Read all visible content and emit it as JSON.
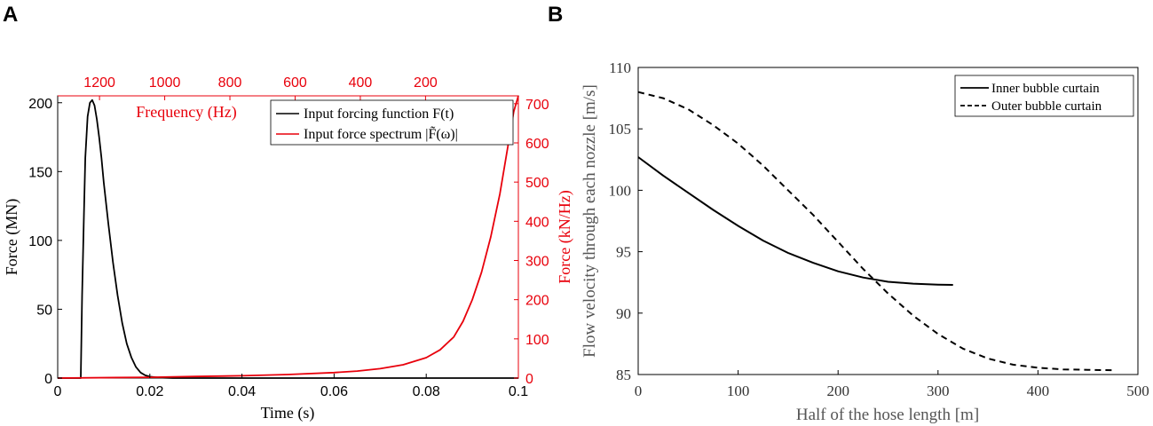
{
  "panels": {
    "a": "A",
    "b": "B"
  },
  "chart_data": [
    {
      "type": "line",
      "panel": "A",
      "xlabel": "Time (s)",
      "ylabel": "Force (MN)",
      "y2label": "Force (kN/Hz)",
      "x2label": "Frequency (Hz)",
      "xlim": [
        0,
        0.1
      ],
      "ylim": [
        0,
        205
      ],
      "y2lim": [
        0,
        720
      ],
      "xticks": [
        "0",
        "0.02",
        "0.04",
        "0.06",
        "0.08",
        "0.1"
      ],
      "yticks": [
        "0",
        "50",
        "100",
        "150",
        "200"
      ],
      "y2ticks": [
        "0",
        "100",
        "200",
        "300",
        "400",
        "500",
        "600",
        "700"
      ],
      "x2ticks": [
        "1200",
        "1000",
        "800",
        "600",
        "400",
        "200"
      ],
      "colors": {
        "primary": "#000000",
        "secondary": "#e8000b"
      },
      "legend": [
        "Input forcing function F(t)",
        "Input force spectrum |F̃(ω)|"
      ],
      "series": [
        {
          "name": "Input forcing function F(t)",
          "axis": "left",
          "x": [
            0,
            0.005,
            0.0053,
            0.0057,
            0.006,
            0.0065,
            0.007,
            0.0075,
            0.008,
            0.0085,
            0.009,
            0.0095,
            0.01,
            0.011,
            0.012,
            0.013,
            0.014,
            0.015,
            0.016,
            0.017,
            0.018,
            0.019,
            0.02,
            0.022,
            0.025,
            0.1
          ],
          "y": [
            0,
            0,
            60,
            120,
            160,
            190,
            200,
            202,
            198,
            188,
            175,
            160,
            142,
            112,
            84,
            60,
            40,
            25,
            15,
            8,
            4,
            2,
            1,
            0.3,
            0,
            0
          ]
        },
        {
          "name": "Input force spectrum |F̃(ω)|",
          "axis": "right",
          "x": [
            0,
            0.02,
            0.03,
            0.04,
            0.05,
            0.06,
            0.065,
            0.07,
            0.075,
            0.08,
            0.083,
            0.086,
            0.088,
            0.09,
            0.092,
            0.094,
            0.096,
            0.097,
            0.098,
            0.099,
            0.1
          ],
          "y": [
            0,
            2,
            4,
            6,
            9,
            14,
            18,
            24,
            34,
            52,
            72,
            105,
            145,
            200,
            270,
            360,
            470,
            540,
            610,
            680,
            720
          ]
        }
      ]
    },
    {
      "type": "line",
      "panel": "B",
      "xlabel": "Half of the hose length [m]",
      "ylabel": "Flow velocity through each nozzle [m/s]",
      "xlim": [
        0,
        500
      ],
      "ylim": [
        85,
        110
      ],
      "xticks": [
        "0",
        "100",
        "200",
        "300",
        "400",
        "500"
      ],
      "yticks": [
        "85",
        "90",
        "95",
        "100",
        "105",
        "110"
      ],
      "legend": [
        "Inner bubble curtain",
        "Outer bubble curtain"
      ],
      "series": [
        {
          "name": "Inner bubble curtain",
          "style": "solid",
          "x": [
            0,
            25,
            50,
            75,
            100,
            125,
            150,
            175,
            200,
            225,
            250,
            275,
            300,
            315
          ],
          "y": [
            102.7,
            101.2,
            99.8,
            98.4,
            97.1,
            95.9,
            94.9,
            94.1,
            93.4,
            92.9,
            92.55,
            92.4,
            92.32,
            92.3
          ]
        },
        {
          "name": "Outer bubble curtain",
          "style": "dashed",
          "x": [
            0,
            25,
            50,
            75,
            100,
            125,
            150,
            175,
            200,
            225,
            250,
            275,
            300,
            325,
            350,
            375,
            400,
            425,
            450,
            475
          ],
          "y": [
            108.0,
            107.5,
            106.6,
            105.3,
            103.8,
            102.0,
            100.0,
            98.0,
            95.8,
            93.6,
            91.6,
            89.8,
            88.3,
            87.1,
            86.3,
            85.8,
            85.55,
            85.42,
            85.38,
            85.35
          ]
        }
      ]
    }
  ]
}
